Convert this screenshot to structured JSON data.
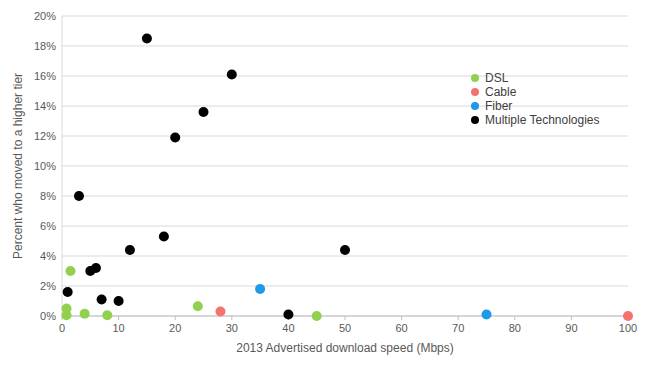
{
  "chart_data": {
    "type": "scatter",
    "x_label": "2013 Advertised download speed (Mbps)",
    "y_label": "Percent who moved to a higher tier",
    "xlim": [
      0,
      100
    ],
    "xticks": [
      0,
      10,
      20,
      30,
      40,
      50,
      60,
      70,
      80,
      90,
      100
    ],
    "ylim": [
      0,
      20
    ],
    "yticks": [
      {
        "value": 0,
        "label": "0%"
      },
      {
        "value": 2,
        "label": "2%"
      },
      {
        "value": 4,
        "label": "4%"
      },
      {
        "value": 6,
        "label": "6%"
      },
      {
        "value": 8,
        "label": "8%"
      },
      {
        "value": 10,
        "label": "10%"
      },
      {
        "value": 12,
        "label": "12%"
      },
      {
        "value": 14,
        "label": "14%"
      },
      {
        "value": 16,
        "label": "16%"
      },
      {
        "value": 18,
        "label": "18%"
      },
      {
        "value": 20,
        "label": "20%"
      }
    ],
    "grid": true,
    "legend": "top-right",
    "marker": "circle",
    "series": [
      {
        "name": "DSL",
        "color": "#92d050",
        "x": [
          0.8,
          0.8,
          1.5,
          4,
          8,
          24,
          45
        ],
        "values": [
          0.05,
          0.5,
          3.0,
          0.15,
          0.05,
          0.65,
          0.0
        ]
      },
      {
        "name": "Cable",
        "color": "#f4736f",
        "x": [
          28,
          100
        ],
        "values": [
          0.3,
          0.0
        ]
      },
      {
        "name": "Fiber",
        "color": "#1e9be8",
        "x": [
          35,
          75
        ],
        "values": [
          1.8,
          0.1
        ]
      },
      {
        "name": "Multiple Technologies",
        "color": "#000000",
        "x": [
          1,
          3,
          5,
          6,
          7,
          10,
          12,
          15,
          18,
          20,
          25,
          30,
          40,
          50
        ],
        "values": [
          1.6,
          8.0,
          3.0,
          3.2,
          1.1,
          1.0,
          4.4,
          18.5,
          5.3,
          11.9,
          13.6,
          16.1,
          0.1,
          4.4
        ]
      }
    ]
  }
}
